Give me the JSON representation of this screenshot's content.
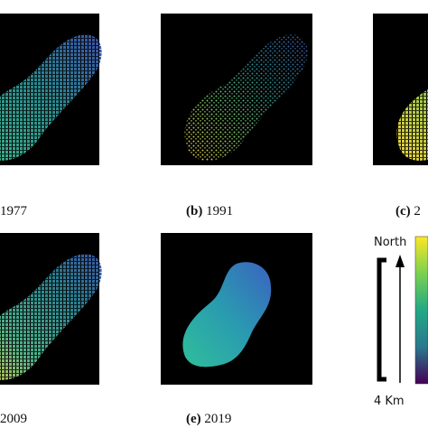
{
  "panels": [
    {
      "caption": "1977"
    },
    {
      "label": "(b)",
      "year": "1991"
    },
    {
      "label": "(c)",
      "year": "2"
    },
    {
      "caption": "2009"
    },
    {
      "label": "(e)",
      "year": "2019"
    }
  ],
  "scale": {
    "north": "North",
    "distance": "4 Km"
  }
}
